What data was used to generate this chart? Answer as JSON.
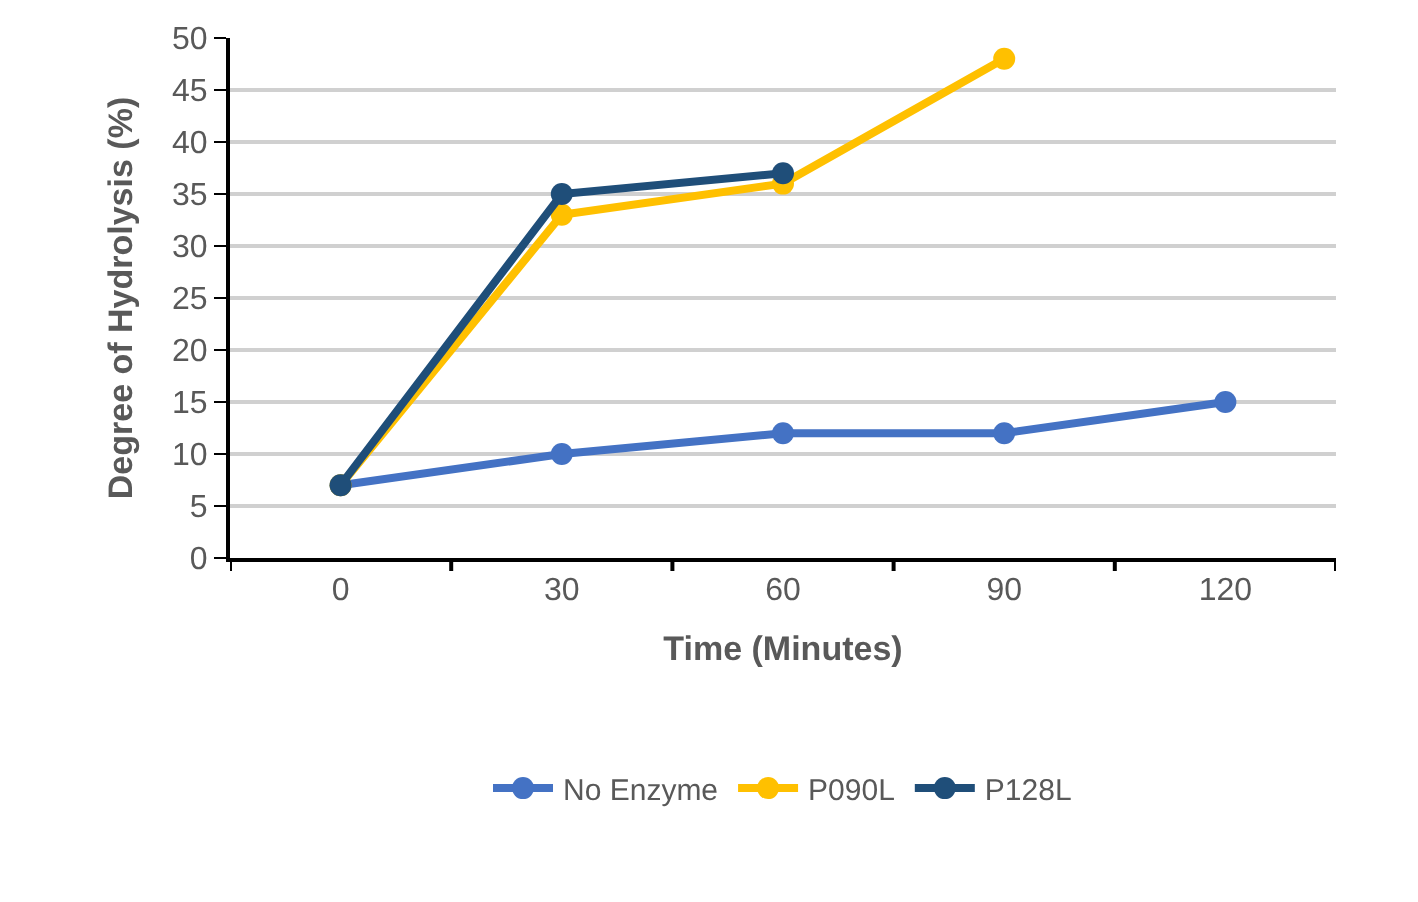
{
  "chart_data": {
    "type": "line",
    "xlabel": "Time (Minutes)",
    "ylabel": "Degree of Hydrolysis (%)",
    "categories": [
      "0",
      "30",
      "60",
      "90",
      "120"
    ],
    "series": [
      {
        "name": "No Enzyme",
        "color": "#4472c4",
        "values": [
          7,
          10,
          12,
          12,
          15
        ]
      },
      {
        "name": "P090L",
        "color": "#ffc000",
        "values": [
          7,
          33,
          36,
          48,
          null
        ]
      },
      {
        "name": "P128L",
        "color": "#1f4e79",
        "values": [
          7,
          35,
          37,
          null,
          null
        ]
      }
    ],
    "ylim": [
      0,
      50
    ],
    "yticks": [
      0,
      5,
      10,
      15,
      20,
      25,
      30,
      35,
      40,
      45,
      50
    ],
    "grid": "y",
    "legend": "bottom",
    "marker": "circle",
    "line_style": "solid"
  }
}
